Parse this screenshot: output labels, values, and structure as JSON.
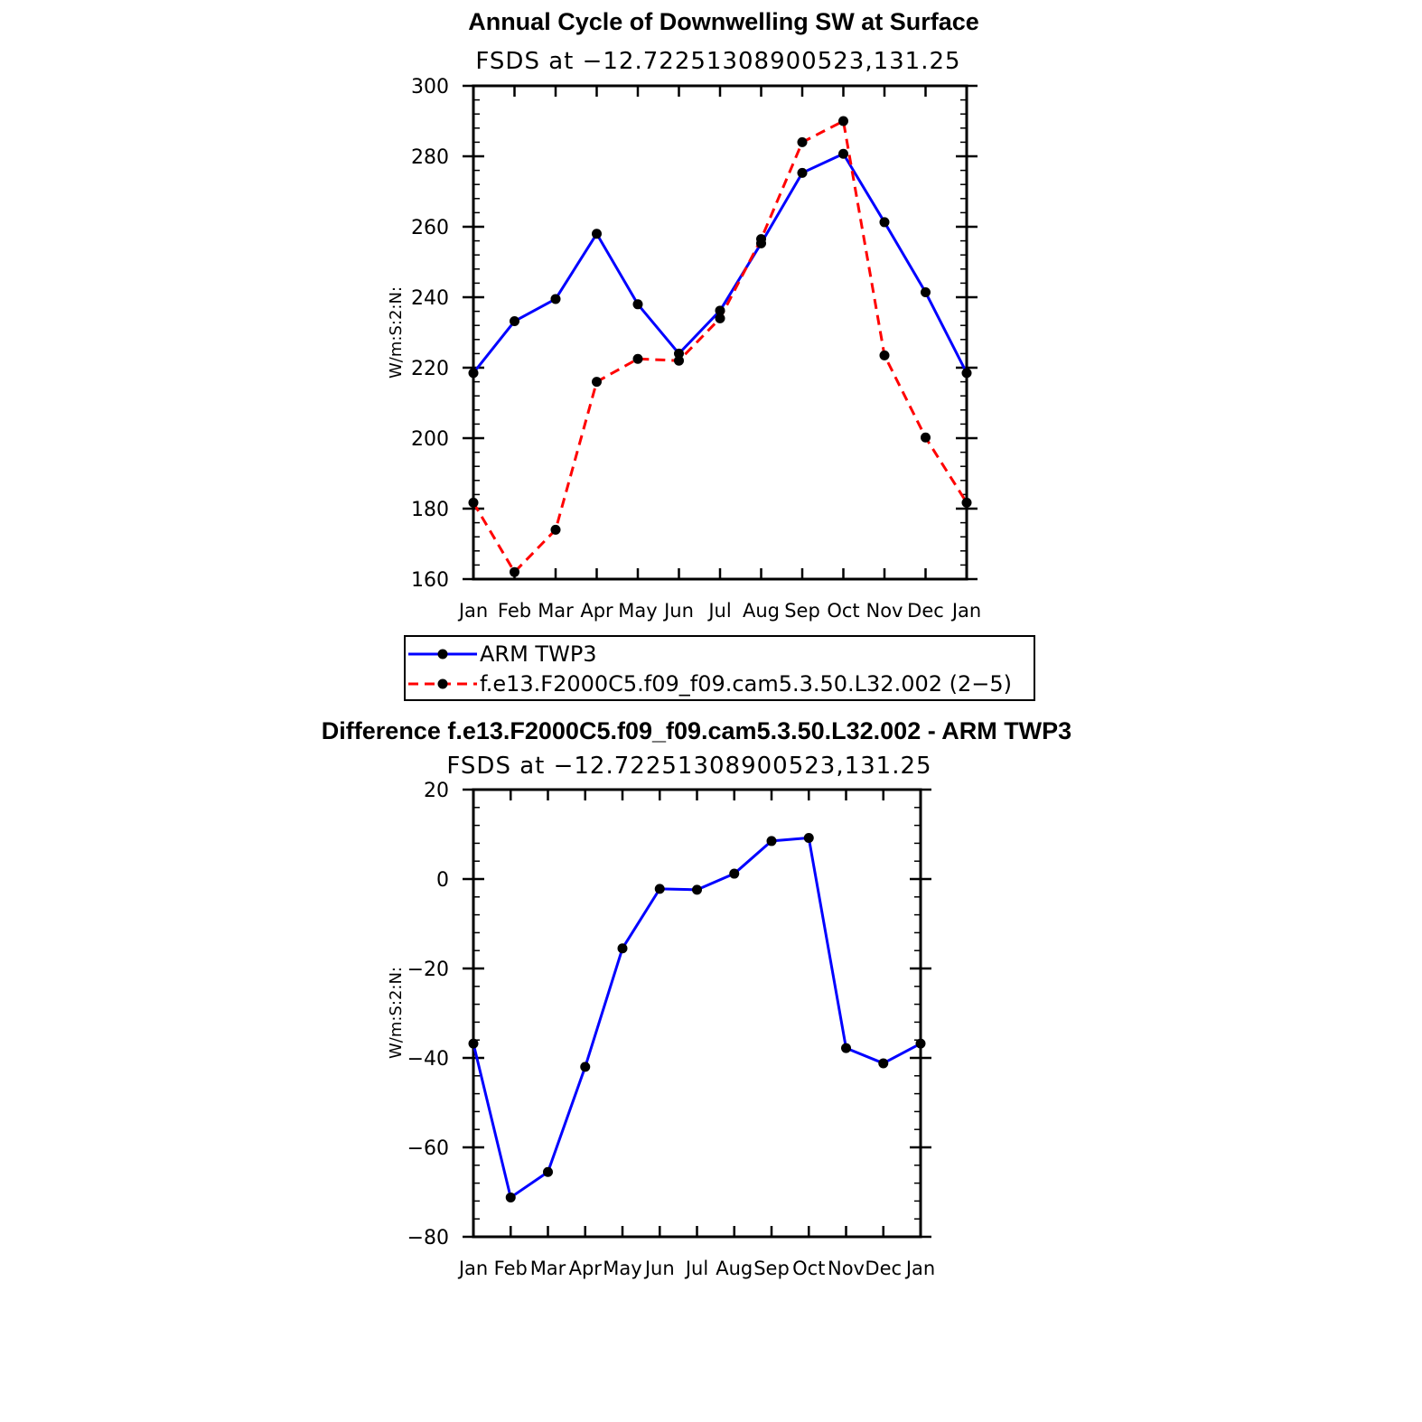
{
  "chart_data": [
    {
      "type": "line",
      "title": "Annual Cycle of Downwelling SW at Surface",
      "subtitle": "FSDS at −12.72251308900523,131.25",
      "xlabel": "",
      "ylabel": "W/m:S:2:N:",
      "ylim": [
        160,
        300
      ],
      "yticks": [
        160,
        180,
        200,
        220,
        240,
        260,
        280,
        300
      ],
      "categories": [
        "Jan",
        "Feb",
        "Mar",
        "Apr",
        "May",
        "Jun",
        "Jul",
        "Aug",
        "Sep",
        "Oct",
        "Nov",
        "Dec",
        "Jan"
      ],
      "grid": false,
      "legend": "below",
      "series": [
        {
          "name": "ARM TWP3",
          "color": "#0000ff",
          "dash": "solid",
          "values": [
            218.5,
            233.2,
            239.5,
            258.0,
            238.0,
            224.0,
            236.2,
            255.3,
            275.3,
            280.7,
            261.3,
            241.4,
            218.5
          ]
        },
        {
          "name": "f.e13.F2000C5.f09_f09.cam5.3.50.L32.002 (2−5)",
          "color": "#ff0000",
          "dash": "dashed",
          "values": [
            181.7,
            162.0,
            174.0,
            216.0,
            222.5,
            222.0,
            234.0,
            256.5,
            284.0,
            290.0,
            223.5,
            200.2,
            181.7
          ]
        }
      ]
    },
    {
      "type": "line",
      "title": "Difference f.e13.F2000C5.f09_f09.cam5.3.50.L32.002 - ARM TWP3",
      "subtitle": "FSDS at −12.72251308900523,131.25",
      "xlabel": "",
      "ylabel": "W/m:S:2:N:",
      "ylim": [
        -80,
        20
      ],
      "yticks": [
        -80,
        -60,
        -40,
        -20,
        0,
        20
      ],
      "ytick_labels": [
        "−80",
        "−60",
        "−40",
        "−20",
        "0",
        "20"
      ],
      "categories": [
        "Jan",
        "Feb",
        "Mar",
        "Apr",
        "May",
        "Jun",
        "Jul",
        "Aug",
        "Sep",
        "Oct",
        "Nov",
        "Dec",
        "Jan"
      ],
      "grid": false,
      "series": [
        {
          "color": "#0000ff",
          "dash": "solid",
          "values": [
            -36.8,
            -71.2,
            -65.5,
            -42.0,
            -15.5,
            -2.2,
            -2.4,
            1.2,
            8.5,
            9.2,
            -37.8,
            -41.2,
            -36.8
          ]
        }
      ]
    }
  ]
}
